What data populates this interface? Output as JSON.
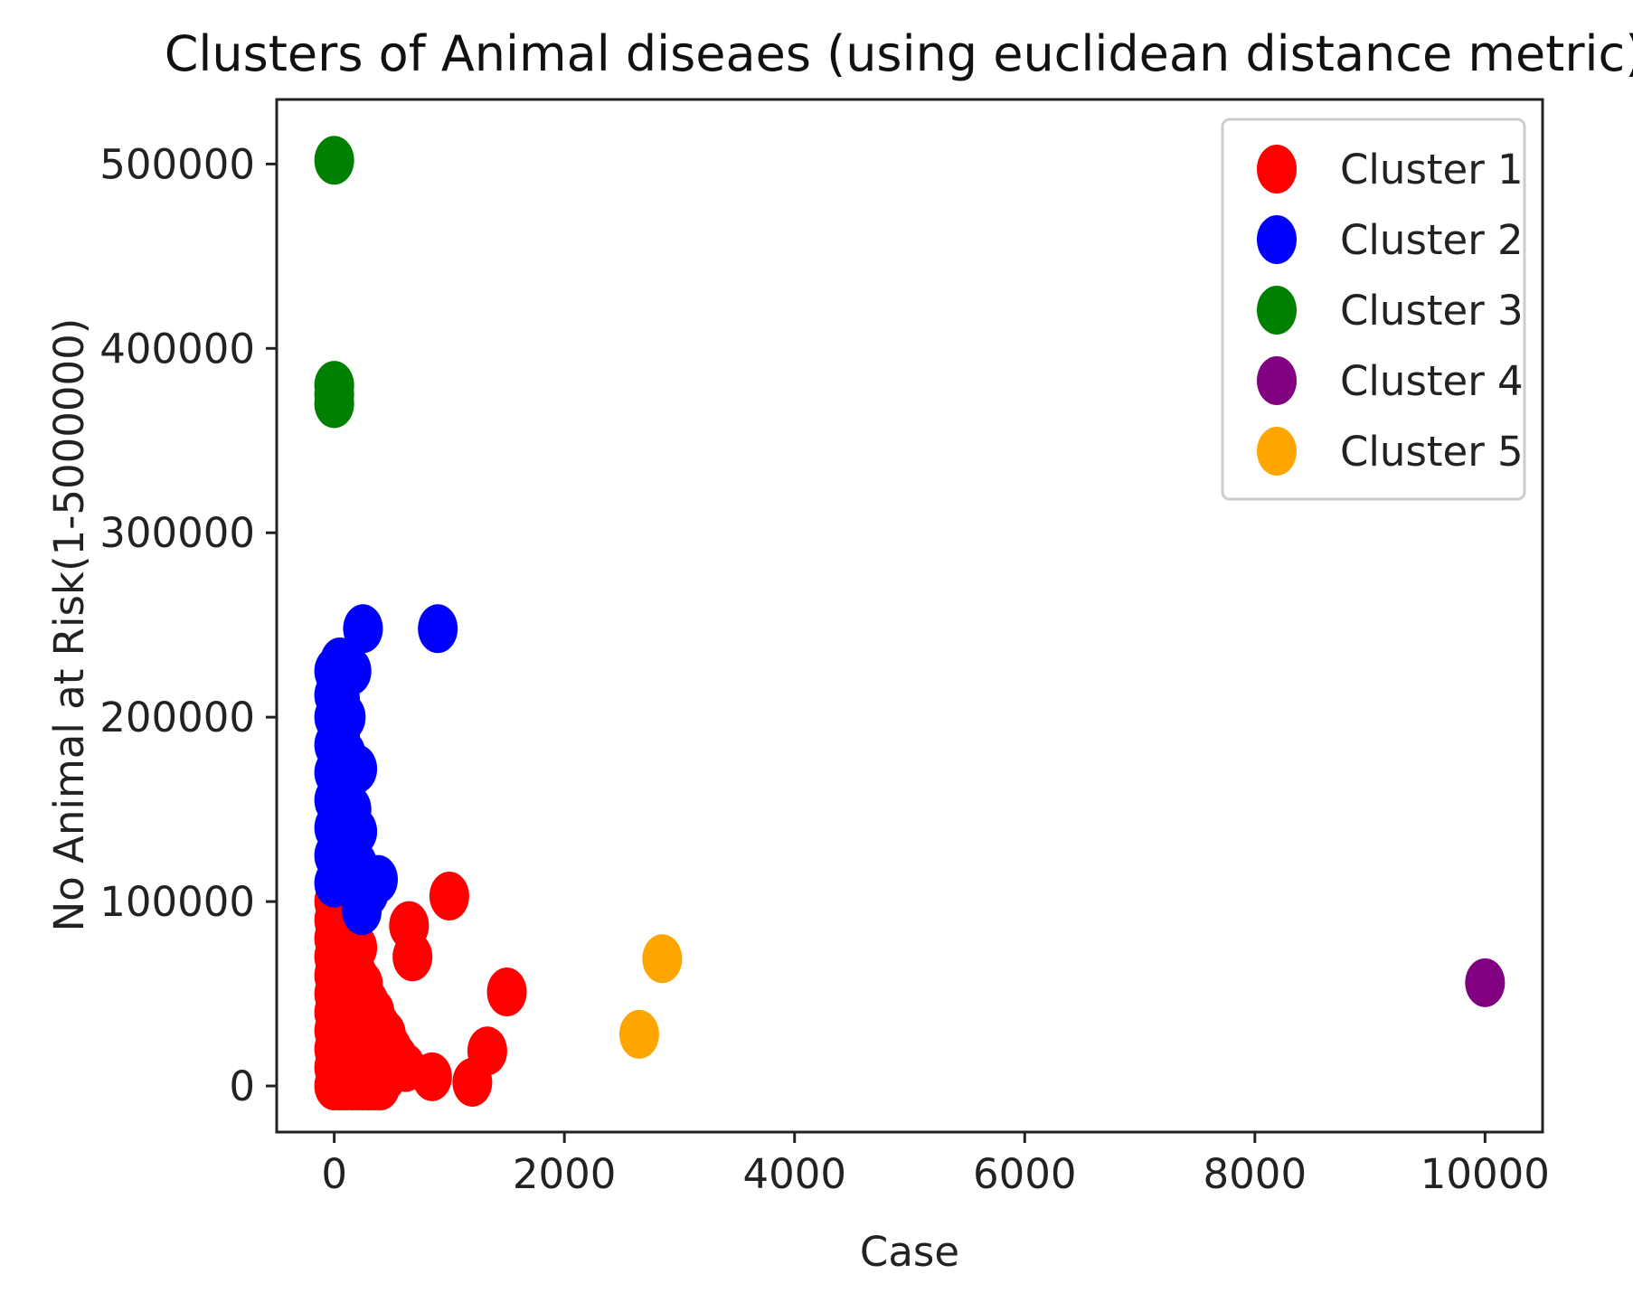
{
  "chart_data": {
    "type": "scatter",
    "title": "Clusters of Animal diseaes (using euclidean distance metric)",
    "xlabel": "Case",
    "ylabel": "No Animal at Risk(1-5000000)",
    "xlim": [
      -500,
      10500
    ],
    "ylim": [
      -25000,
      535000
    ],
    "x_ticks": [
      0,
      2000,
      4000,
      6000,
      8000,
      10000
    ],
    "x_tick_labels": [
      "0",
      "2000",
      "4000",
      "6000",
      "8000",
      "10000"
    ],
    "y_ticks": [
      0,
      100000,
      200000,
      300000,
      400000,
      500000
    ],
    "y_tick_labels": [
      "0",
      "100000",
      "200000",
      "300000",
      "400000",
      "500000"
    ],
    "grid": false,
    "legend_position": "top-right",
    "series": [
      {
        "name": "Cluster 1",
        "color": "#ff0000",
        "points": [
          [
            0,
            0
          ],
          [
            0,
            10000
          ],
          [
            0,
            20000
          ],
          [
            0,
            30000
          ],
          [
            0,
            40000
          ],
          [
            0,
            50000
          ],
          [
            0,
            60000
          ],
          [
            0,
            70000
          ],
          [
            0,
            80000
          ],
          [
            0,
            90000
          ],
          [
            0,
            100000
          ],
          [
            50,
            0
          ],
          [
            50,
            15000
          ],
          [
            50,
            30000
          ],
          [
            50,
            45000
          ],
          [
            50,
            60000
          ],
          [
            50,
            75000
          ],
          [
            50,
            90000
          ],
          [
            100,
            0
          ],
          [
            100,
            15000
          ],
          [
            100,
            30000
          ],
          [
            100,
            45000
          ],
          [
            100,
            60000
          ],
          [
            100,
            75000
          ],
          [
            100,
            90000
          ],
          [
            150,
            0
          ],
          [
            150,
            20000
          ],
          [
            150,
            40000
          ],
          [
            150,
            60000
          ],
          [
            150,
            80000
          ],
          [
            200,
            0
          ],
          [
            200,
            15000
          ],
          [
            200,
            30000
          ],
          [
            200,
            45000
          ],
          [
            200,
            60000
          ],
          [
            200,
            75000
          ],
          [
            250,
            0
          ],
          [
            250,
            20000
          ],
          [
            250,
            40000
          ],
          [
            250,
            55000
          ],
          [
            300,
            0
          ],
          [
            300,
            15000
          ],
          [
            300,
            30000
          ],
          [
            300,
            45000
          ],
          [
            350,
            0
          ],
          [
            350,
            15000
          ],
          [
            350,
            30000
          ],
          [
            350,
            40000
          ],
          [
            400,
            0
          ],
          [
            400,
            10000
          ],
          [
            400,
            20000
          ],
          [
            400,
            32000
          ],
          [
            450,
            5000
          ],
          [
            450,
            18000
          ],
          [
            450,
            28000
          ],
          [
            500,
            10000
          ],
          [
            500,
            20000
          ],
          [
            550,
            15000
          ],
          [
            620,
            10000
          ],
          [
            650,
            87000
          ],
          [
            680,
            70000
          ],
          [
            850,
            5000
          ],
          [
            1000,
            103000
          ],
          [
            1200,
            2000
          ],
          [
            1330,
            19000
          ],
          [
            1500,
            51000
          ]
        ]
      },
      {
        "name": "Cluster 2",
        "color": "#0000ff",
        "points": [
          [
            0,
            110000
          ],
          [
            0,
            125000
          ],
          [
            0,
            140000
          ],
          [
            0,
            155000
          ],
          [
            0,
            170000
          ],
          [
            0,
            185000
          ],
          [
            0,
            200000
          ],
          [
            0,
            212000
          ],
          [
            0,
            225000
          ],
          [
            50,
            115000
          ],
          [
            50,
            130000
          ],
          [
            50,
            150000
          ],
          [
            50,
            170000
          ],
          [
            50,
            190000
          ],
          [
            50,
            210000
          ],
          [
            50,
            230000
          ],
          [
            100,
            120000
          ],
          [
            100,
            140000
          ],
          [
            100,
            160000
          ],
          [
            100,
            180000
          ],
          [
            100,
            200000
          ],
          [
            150,
            110000
          ],
          [
            150,
            130000
          ],
          [
            150,
            150000
          ],
          [
            150,
            172000
          ],
          [
            150,
            225000
          ],
          [
            200,
            120000
          ],
          [
            200,
            138000
          ],
          [
            200,
            172000
          ],
          [
            240,
            95000
          ],
          [
            250,
            248000
          ],
          [
            300,
            105000
          ],
          [
            380,
            112000
          ],
          [
            900,
            248000
          ]
        ]
      },
      {
        "name": "Cluster 3",
        "color": "#008000",
        "points": [
          [
            0,
            502000
          ],
          [
            0,
            380000
          ],
          [
            0,
            375000
          ],
          [
            0,
            370000
          ]
        ]
      },
      {
        "name": "Cluster 4",
        "color": "#800080",
        "points": [
          [
            10000,
            56000
          ]
        ]
      },
      {
        "name": "Cluster 5",
        "color": "#ffa500",
        "points": [
          [
            2850,
            69000
          ],
          [
            2650,
            28000
          ]
        ]
      }
    ]
  }
}
